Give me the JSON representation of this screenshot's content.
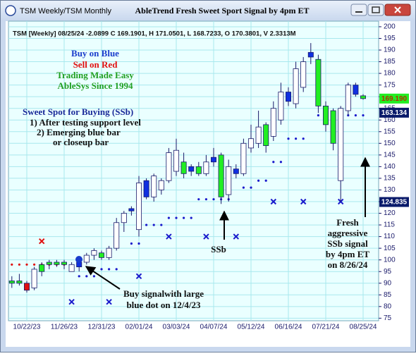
{
  "window_title": "TSM Weekly/TSM Monthly",
  "chart_data": {
    "type": "candlestick",
    "title": "AbleTrend Fresh Sweet Sport Signal by 4pm ET",
    "header": "TSM [Weekly] 08/25/24 -2.0899 C 169.1901, H 171.0501, L 168.7233, O 170.3801, V 2.3313M",
    "categories": [
      null,
      null,
      "10/22/23",
      null,
      null,
      null,
      null,
      "11/26/23",
      null,
      null,
      null,
      null,
      "12/31/23",
      null,
      null,
      null,
      null,
      "02/01/24",
      null,
      null,
      null,
      null,
      "03/03/24",
      null,
      null,
      null,
      null,
      "04/07/24",
      null,
      null,
      null,
      null,
      "05/12/24",
      null,
      null,
      null,
      null,
      "06/16/24",
      null,
      null,
      null,
      null,
      "07/21/24",
      null,
      null,
      null,
      null,
      "08/25/24"
    ],
    "open": [
      90,
      91,
      90,
      88,
      95,
      98,
      99,
      98,
      95,
      97,
      99,
      102,
      103,
      101,
      105,
      116,
      121,
      113,
      134,
      127,
      130,
      134,
      138,
      142,
      138,
      140,
      137,
      144,
      145,
      128,
      139,
      137,
      148,
      150,
      158,
      153,
      160,
      172,
      167,
      174,
      189,
      186,
      166,
      164,
      134,
      164,
      175,
      170.3801
    ],
    "high": [
      93,
      94,
      91,
      97,
      99,
      100,
      100,
      100,
      99,
      100,
      103,
      105,
      104,
      106,
      118,
      121,
      123,
      136,
      135,
      137,
      135,
      148,
      152,
      146,
      141,
      142,
      145,
      148,
      146,
      143,
      141,
      152,
      158,
      164,
      159,
      168,
      176,
      174,
      185,
      187,
      193,
      188,
      168,
      165,
      166,
      176,
      176,
      171.0501
    ],
    "low": [
      88,
      89,
      86,
      87,
      93,
      96,
      97,
      96,
      95,
      95,
      98,
      100,
      100,
      100,
      104,
      112,
      119,
      110,
      126,
      125,
      128,
      133,
      136,
      135,
      136,
      136,
      136,
      140,
      124,
      125,
      135,
      136,
      146,
      148,
      146,
      151,
      158,
      166,
      165,
      172,
      184,
      163,
      155,
      147,
      125,
      162,
      170,
      168.7233
    ],
    "close": [
      91,
      90,
      87,
      96,
      98,
      99,
      98,
      99,
      98,
      99,
      102,
      104,
      101,
      105,
      116,
      120,
      122,
      133,
      127,
      136,
      134,
      146,
      147,
      137,
      140,
      137,
      142,
      142,
      127,
      140,
      137,
      150,
      152,
      157,
      149,
      165,
      172,
      168,
      182,
      185,
      187,
      166,
      158,
      150,
      165,
      175,
      171,
      169.1901
    ],
    "bar_colors": [
      "#22ee22",
      "#22ee22",
      "#e01010",
      "#ffffff",
      "#22ee22",
      "#22ee22",
      "#22ee22",
      "#22ee22",
      "#ffffff",
      "#1030e0",
      "#ffffff",
      "#ffffff",
      "#22ee22",
      "#ffffff",
      "#ffffff",
      "#ffffff",
      "#1030e0",
      "#ffffff",
      "#1030e0",
      "#ffffff",
      "#ffffff",
      "#ffffff",
      "#ffffff",
      "#22ee22",
      "#1030e0",
      "#22ee22",
      "#ffffff",
      "#1030e0",
      "#22ee22",
      "#ffffff",
      "#1030e0",
      "#ffffff",
      "#ffffff",
      "#ffffff",
      "#22ee22",
      "#ffffff",
      "#ffffff",
      "#1030e0",
      "#ffffff",
      "#ffffff",
      "#1030e0",
      "#22ee22",
      "#22ee22",
      "#22ee22",
      "#ffffff",
      "#ffffff",
      "#1030e0",
      "#22ee22"
    ],
    "sell_stops": [
      98,
      98,
      98,
      98,
      98,
      98,
      98,
      98,
      null,
      null,
      null,
      null,
      null,
      null,
      null,
      null,
      null,
      null,
      null,
      null,
      null,
      null,
      null,
      null,
      null,
      null,
      null,
      null,
      null,
      null,
      null,
      null,
      null,
      null,
      null,
      null,
      null,
      null,
      null,
      null,
      null,
      null,
      null,
      null,
      null,
      null,
      null,
      null
    ],
    "sell_stop_color": "#e01010",
    "buy_stops": [
      null,
      null,
      null,
      null,
      null,
      null,
      null,
      null,
      null,
      93,
      93,
      93,
      96,
      96,
      96,
      null,
      107,
      107,
      115,
      115,
      115,
      118,
      118,
      118,
      118,
      126,
      126,
      126,
      126,
      126,
      null,
      131,
      131,
      134,
      134,
      142,
      142,
      152,
      152,
      152,
      null,
      162,
      162,
      162,
      162,
      162,
      162,
      162
    ],
    "buy_stop_color": "#1a1acc",
    "blue_x_marks": [
      null,
      null,
      null,
      null,
      null,
      null,
      null,
      null,
      82,
      null,
      null,
      null,
      null,
      82,
      null,
      null,
      null,
      93,
      null,
      null,
      null,
      110,
      null,
      null,
      null,
      null,
      110,
      null,
      null,
      null,
      110,
      null,
      null,
      null,
      null,
      125,
      null,
      null,
      null,
      125,
      null,
      null,
      null,
      null,
      125,
      null,
      null,
      null
    ],
    "blue_x_color": "#1a1acc",
    "red_x_marks": [
      null,
      null,
      null,
      null,
      108,
      null,
      null,
      null,
      null,
      null,
      null,
      null,
      null,
      null,
      null,
      null,
      null,
      null,
      null,
      null,
      null,
      null,
      null,
      null,
      null,
      null,
      null,
      null,
      null,
      null,
      null,
      null,
      null,
      null,
      null,
      null,
      null,
      null,
      null,
      null,
      null,
      null,
      null,
      null,
      null,
      null,
      null,
      null
    ],
    "red_x_color": "#e01010",
    "price_markers": [
      {
        "value": 169.19,
        "label": "169.190",
        "color": "#22ee22",
        "text_color": "#b03000"
      },
      {
        "value": 163.134,
        "label": "163.134",
        "color": "#0a1a6a",
        "text_color": "#ffffff"
      },
      {
        "value": 124.835,
        "label": "124.835",
        "color": "#0a1a6a",
        "text_color": "#ffffff"
      }
    ],
    "ylim": [
      73.9,
      202.4
    ],
    "yticks": [
      75,
      80,
      85,
      90,
      95,
      100,
      105,
      110,
      115,
      120,
      125,
      130,
      135,
      140,
      145,
      150,
      155,
      160,
      165,
      170,
      175,
      180,
      185,
      190,
      195,
      200
    ],
    "grid": true,
    "annotations": {
      "buy_on_blue": "Buy on Blue",
      "sell_on_red": "Sell on Red",
      "trading": "Trading Made Easy",
      "ablesys": "AbleSys Since 1994",
      "sweet_spot": "Sweet Spot for Buying (SSb)",
      "step1": "1) After testing support level",
      "step2": "2) Emerging blue bar",
      "step3": "or closeup bar",
      "buy_signal_1": "Buy signalwith large",
      "buy_signal_2": "blue dot on 12/4/23",
      "ssb": "SSb",
      "fresh_1": "Fresh",
      "fresh_2": "aggressive",
      "fresh_3": "SSb signal",
      "fresh_4": "by 4pm ET",
      "fresh_5": "on 8/26/24"
    }
  }
}
